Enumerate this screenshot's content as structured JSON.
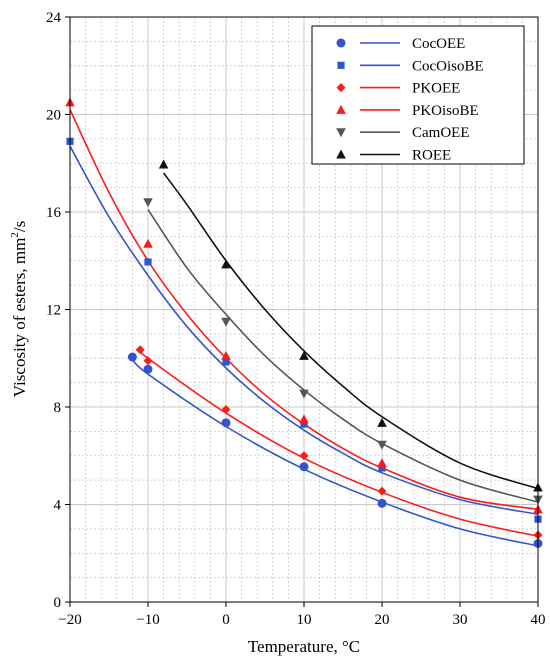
{
  "chart_data": {
    "type": "scatter",
    "xlabel": "Temperature, °C",
    "ylabel_main": "Viscosity of esters, mm",
    "ylabel_sup": "2",
    "ylabel_tail": "/s",
    "xlim": [
      -20,
      40
    ],
    "ylim": [
      0,
      24
    ],
    "xticks": [
      -20,
      -10,
      0,
      10,
      20,
      30,
      40
    ],
    "yticks": [
      0,
      4,
      8,
      12,
      16,
      20,
      24
    ],
    "xtick_labels": [
      "−20",
      "−10",
      "0",
      "10",
      "20",
      "30",
      "40"
    ],
    "ytick_labels": [
      "0",
      "4",
      "8",
      "12",
      "16",
      "20",
      "24"
    ],
    "grid": true,
    "legend_position": "top-right",
    "series": [
      {
        "name": "CocOEE",
        "marker": "circle",
        "color": "#3355cc",
        "points": [
          [
            -12,
            10.05
          ],
          [
            -10,
            9.55
          ],
          [
            0,
            7.35
          ],
          [
            10,
            5.55
          ],
          [
            20,
            4.05
          ],
          [
            40,
            2.4
          ]
        ],
        "fit": [
          [
            -12,
            9.95
          ],
          [
            -10,
            9.35
          ],
          [
            0,
            7.2
          ],
          [
            10,
            5.45
          ],
          [
            20,
            4.1
          ],
          [
            30,
            3.0
          ],
          [
            40,
            2.3
          ]
        ]
      },
      {
        "name": "CocOisoBE",
        "marker": "square",
        "color": "#3355cc",
        "points": [
          [
            -20,
            18.9
          ],
          [
            -10,
            13.95
          ],
          [
            0,
            9.85
          ],
          [
            10,
            7.3
          ],
          [
            20,
            5.5
          ],
          [
            40,
            3.4
          ]
        ],
        "fit": [
          [
            -20,
            18.7
          ],
          [
            -15,
            15.8
          ],
          [
            -10,
            13.4
          ],
          [
            -5,
            11.3
          ],
          [
            0,
            9.6
          ],
          [
            5,
            8.2
          ],
          [
            10,
            7.05
          ],
          [
            15,
            6.1
          ],
          [
            20,
            5.3
          ],
          [
            30,
            4.2
          ],
          [
            40,
            3.6
          ]
        ]
      },
      {
        "name": "PKOEE",
        "marker": "diamond",
        "color": "#ff1a1a",
        "points": [
          [
            -11,
            10.35
          ],
          [
            -10,
            9.9
          ],
          [
            0,
            7.9
          ],
          [
            10,
            6.0
          ],
          [
            20,
            4.55
          ],
          [
            40,
            2.75
          ]
        ],
        "fit": [
          [
            -11,
            10.35
          ],
          [
            -10,
            10.0
          ],
          [
            0,
            7.75
          ],
          [
            10,
            5.9
          ],
          [
            20,
            4.5
          ],
          [
            30,
            3.4
          ],
          [
            40,
            2.7
          ]
        ]
      },
      {
        "name": "PKOisoBE",
        "marker": "triangle-up",
        "color": "#ff1a1a",
        "points": [
          [
            -20,
            20.5
          ],
          [
            -10,
            14.7
          ],
          [
            0,
            10.1
          ],
          [
            10,
            7.5
          ],
          [
            20,
            5.7
          ],
          [
            40,
            3.8
          ]
        ],
        "fit": [
          [
            -20,
            20.2
          ],
          [
            -15,
            16.8
          ],
          [
            -10,
            14.0
          ],
          [
            -5,
            11.8
          ],
          [
            0,
            10.0
          ],
          [
            5,
            8.5
          ],
          [
            10,
            7.3
          ],
          [
            15,
            6.3
          ],
          [
            20,
            5.5
          ],
          [
            30,
            4.3
          ],
          [
            40,
            3.8
          ]
        ]
      },
      {
        "name": "CamOEE",
        "marker": "triangle-down",
        "color": "#555555",
        "points": [
          [
            -10,
            16.4
          ],
          [
            0,
            11.5
          ],
          [
            10,
            8.55
          ],
          [
            20,
            6.45
          ],
          [
            40,
            4.2
          ]
        ],
        "fit": [
          [
            -10,
            16.1
          ],
          [
            -5,
            13.7
          ],
          [
            0,
            11.8
          ],
          [
            5,
            10.1
          ],
          [
            10,
            8.7
          ],
          [
            15,
            7.5
          ],
          [
            20,
            6.5
          ],
          [
            30,
            5.0
          ],
          [
            40,
            4.1
          ]
        ]
      },
      {
        "name": "ROEE",
        "marker": "triangle-up",
        "color": "#111111",
        "points": [
          [
            -8,
            17.95
          ],
          [
            0,
            13.85
          ],
          [
            10,
            10.1
          ],
          [
            20,
            7.35
          ],
          [
            40,
            4.7
          ]
        ],
        "fit": [
          [
            -8,
            17.6
          ],
          [
            -5,
            16.3
          ],
          [
            0,
            14.0
          ],
          [
            5,
            12.0
          ],
          [
            10,
            10.3
          ],
          [
            15,
            8.85
          ],
          [
            20,
            7.6
          ],
          [
            30,
            5.7
          ],
          [
            40,
            4.65
          ]
        ]
      }
    ]
  }
}
